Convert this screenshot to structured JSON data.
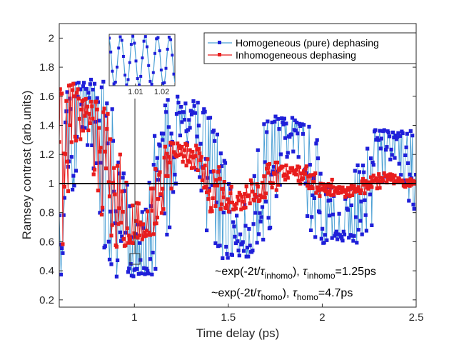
{
  "chart_data": {
    "type": "line",
    "xlabel": "Time delay (ps)",
    "ylabel": "Ramsey contrast (arb.units)",
    "xlim": [
      0.6,
      2.5
    ],
    "ylim": [
      0.15,
      2.1
    ],
    "xticks": [
      "1",
      "1.5",
      "2",
      "2.5"
    ],
    "yticks": [
      "0.2",
      "0.4",
      "0.6",
      "0.8",
      "1",
      "1.2",
      "1.4",
      "1.6",
      "1.8",
      "2"
    ],
    "grid": false,
    "legend_position": "top-right",
    "baseline_y": 1.0,
    "series": [
      {
        "name": "Homogeneous (pure) dephasing",
        "color": "#1f1fd9",
        "line_color": "#4a9fd4",
        "marker": "square",
        "model": {
          "mean": 1.0,
          "amplitude": 0.75,
          "tau_ps": 4.7,
          "period_ps": 0.00466,
          "t_start_ps": 0.6,
          "t_end_ps": 2.5,
          "step_ps": 0.0047
        }
      },
      {
        "name": "Inhomogeneous dephasing",
        "color": "#e81d1d",
        "line_color": "#e81d1d",
        "marker": "square",
        "model": {
          "mean": 1.0,
          "amplitude": 0.75,
          "tau_ps": 1.25,
          "period_ps": 0.00466,
          "t_start_ps": 0.6,
          "t_end_ps": 2.5,
          "step_ps": 0.0047
        }
      }
    ],
    "annotations": [
      {
        "parts": [
          "~exp(-2t/",
          "τ",
          "inhomo",
          "), ",
          "τ",
          "inhomo",
          "=1.25ps"
        ],
        "color": "#e81d1d"
      },
      {
        "parts": [
          "~exp(-2t/",
          "τ",
          "homo",
          "), ",
          "τ",
          "homo",
          "=4.7ps"
        ],
        "color": "#1f1fd9"
      }
    ],
    "inset": {
      "xticks": [
        "1.01",
        "1.02"
      ],
      "yticks": [],
      "xlim": [
        1.0,
        1.025
      ],
      "ylim": [
        0.5,
        2.1
      ]
    }
  }
}
